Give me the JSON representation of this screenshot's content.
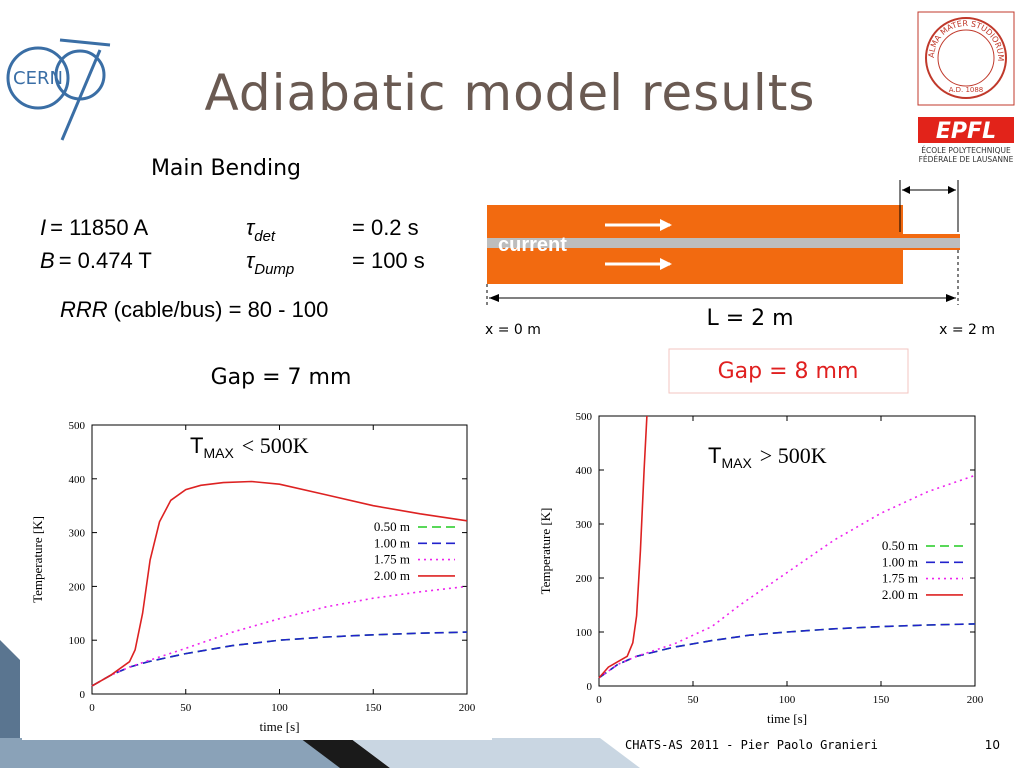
{
  "header": {
    "title": "Adiabatic model results"
  },
  "logos": {
    "cern": "CERN",
    "bologna_motto": "ALMA MATER STUDIORUM",
    "bologna_year": "A.D. 1088",
    "epfl": "EPFL",
    "epfl_name_1": "ÉCOLE POLYTECHNIQUE",
    "epfl_name_2": "FÉDÉRALE DE LAUSANNE"
  },
  "parameters": {
    "heading": "Main Bending",
    "current": {
      "symbol": "I",
      "value": "= 11850 A"
    },
    "field": {
      "symbol": "B",
      "value": "= 0.474 T"
    },
    "detection": {
      "symbol": "τ",
      "subscript": "det",
      "value": "= 0.2 s"
    },
    "dump": {
      "symbol": "τ",
      "subscript": "Dump",
      "value": "= 100 s"
    },
    "rrr": {
      "symbol": "RRR",
      "value": "(cable/bus) = 80 - 100"
    },
    "gap_left": "Gap = 7 mm"
  },
  "diagram": {
    "current_label": "current",
    "length": "L = 2 m",
    "start": "x = 0 m",
    "end": "x = 2 m",
    "gap_right": "Gap = 8 mm"
  },
  "footer": {
    "text": "CHATS-AS 2011 - Pier Paolo Granieri",
    "page": "10"
  },
  "chart_data": [
    {
      "type": "line",
      "x_label": "time [s]",
      "y_label": "Temperature [K]",
      "annotation": {
        "symbol": "T",
        "subscript": "MAX",
        "text": "< 500K"
      },
      "xlim": [
        0,
        200
      ],
      "ylim": [
        0,
        500
      ],
      "xticks": [
        0,
        50,
        100,
        150,
        200
      ],
      "yticks": [
        0,
        100,
        200,
        300,
        400,
        500
      ],
      "series": [
        {
          "name": "0.50 m",
          "color": "#22cc22",
          "linestyle": "dashed",
          "x": [
            0,
            10,
            20,
            30,
            50,
            75,
            100,
            125,
            150,
            175,
            200
          ],
          "values": [
            15,
            35,
            50,
            60,
            75,
            90,
            100,
            106,
            110,
            113,
            115
          ]
        },
        {
          "name": "1.00 m",
          "color": "#2222cc",
          "linestyle": "dashed",
          "x": [
            0,
            10,
            20,
            30,
            50,
            75,
            100,
            125,
            150,
            175,
            200
          ],
          "values": [
            15,
            35,
            50,
            60,
            75,
            90,
            100,
            106,
            110,
            113,
            115
          ]
        },
        {
          "name": "1.75 m",
          "color": "#ee22ee",
          "linestyle": "dotted",
          "x": [
            0,
            10,
            20,
            30,
            50,
            75,
            100,
            125,
            150,
            175,
            200
          ],
          "values": [
            15,
            35,
            50,
            62,
            85,
            115,
            140,
            162,
            178,
            190,
            200
          ]
        },
        {
          "name": "2.00 m",
          "color": "#dd2222",
          "linestyle": "solid",
          "x": [
            0,
            10,
            20,
            23,
            27,
            31,
            36,
            42,
            50,
            58,
            70,
            85,
            100,
            125,
            150,
            175,
            200
          ],
          "values": [
            15,
            35,
            60,
            82,
            150,
            249,
            320,
            360,
            380,
            388,
            393,
            395,
            390,
            370,
            350,
            335,
            322
          ]
        }
      ]
    },
    {
      "type": "line",
      "x_label": "time [s]",
      "y_label": "Temperature [K]",
      "annotation": {
        "symbol": "T",
        "subscript": "MAX",
        "text": "> 500K"
      },
      "xlim": [
        0,
        200
      ],
      "ylim": [
        0,
        500
      ],
      "xticks": [
        0,
        50,
        100,
        150,
        200
      ],
      "yticks": [
        0,
        100,
        200,
        300,
        400,
        500
      ],
      "series": [
        {
          "name": "0.50 m",
          "color": "#22cc22",
          "linestyle": "dashed",
          "x": [
            0,
            10,
            20,
            40,
            60,
            80,
            100,
            125,
            150,
            175,
            200
          ],
          "values": [
            15,
            40,
            55,
            72,
            84,
            94,
            100,
            106,
            110,
            113,
            115
          ]
        },
        {
          "name": "1.00 m",
          "color": "#2222cc",
          "linestyle": "dashed",
          "x": [
            0,
            10,
            20,
            40,
            60,
            80,
            100,
            125,
            150,
            175,
            200
          ],
          "values": [
            15,
            40,
            55,
            72,
            84,
            94,
            100,
            106,
            110,
            113,
            115
          ]
        },
        {
          "name": "1.75 m",
          "color": "#ee22ee",
          "linestyle": "dotted",
          "x": [
            0,
            10,
            20,
            40,
            60,
            75,
            100,
            125,
            150,
            175,
            200
          ],
          "values": [
            15,
            40,
            55,
            78,
            110,
            150,
            210,
            270,
            320,
            360,
            390
          ]
        },
        {
          "name": "2.00 m",
          "color": "#dd2222",
          "linestyle": "solid",
          "x": [
            0,
            5,
            10,
            15,
            18,
            20,
            22,
            24,
            25.5
          ],
          "values": [
            15,
            35,
            45,
            55,
            80,
            130,
            250,
            400,
            500
          ]
        }
      ]
    }
  ]
}
